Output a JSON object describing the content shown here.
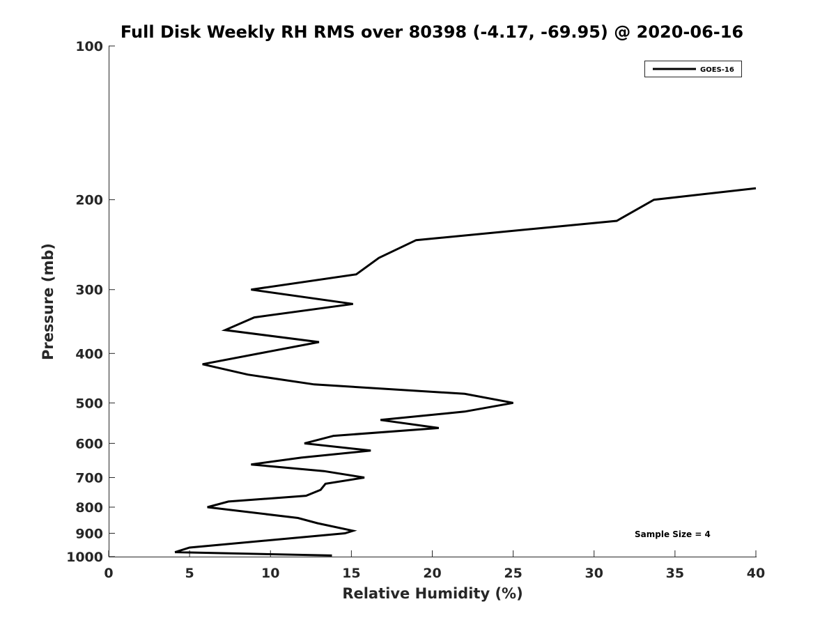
{
  "chart_data": {
    "type": "line",
    "title": "Full Disk Weekly RH RMS over 80398 (-4.17, -69.95) @ 2020-06-16",
    "xlabel": "Relative Humidity (%)",
    "ylabel": "Pressure (mb)",
    "xlim": [
      0,
      40
    ],
    "ylim": [
      100,
      1000
    ],
    "yscale": "log",
    "y_reversed": true,
    "grid": false,
    "legend_position": "top-right",
    "x_ticks": [
      0,
      5,
      10,
      15,
      20,
      25,
      30,
      35,
      40
    ],
    "y_ticks": [
      100,
      200,
      300,
      400,
      500,
      600,
      700,
      800,
      900,
      1000
    ],
    "series": [
      {
        "name": "GOES-16",
        "color": "#000000",
        "points": [
          {
            "x": 40.0,
            "y": 190
          },
          {
            "x": 33.7,
            "y": 200
          },
          {
            "x": 31.4,
            "y": 220
          },
          {
            "x": 19.0,
            "y": 240
          },
          {
            "x": 16.7,
            "y": 260
          },
          {
            "x": 15.3,
            "y": 280
          },
          {
            "x": 8.8,
            "y": 300
          },
          {
            "x": 15.1,
            "y": 320
          },
          {
            "x": 9.0,
            "y": 340
          },
          {
            "x": 7.2,
            "y": 360
          },
          {
            "x": 13.0,
            "y": 380
          },
          {
            "x": 5.8,
            "y": 420
          },
          {
            "x": 8.6,
            "y": 440
          },
          {
            "x": 12.7,
            "y": 460
          },
          {
            "x": 22.0,
            "y": 480
          },
          {
            "x": 25.0,
            "y": 500
          },
          {
            "x": 22.0,
            "y": 520
          },
          {
            "x": 16.8,
            "y": 540
          },
          {
            "x": 20.4,
            "y": 560
          },
          {
            "x": 13.9,
            "y": 580
          },
          {
            "x": 12.1,
            "y": 600
          },
          {
            "x": 16.2,
            "y": 620
          },
          {
            "x": 11.9,
            "y": 640
          },
          {
            "x": 8.8,
            "y": 660
          },
          {
            "x": 13.3,
            "y": 680
          },
          {
            "x": 15.8,
            "y": 700
          },
          {
            "x": 13.4,
            "y": 720
          },
          {
            "x": 13.1,
            "y": 740
          },
          {
            "x": 12.2,
            "y": 760
          },
          {
            "x": 7.4,
            "y": 780
          },
          {
            "x": 6.1,
            "y": 800
          },
          {
            "x": 11.7,
            "y": 840
          },
          {
            "x": 12.9,
            "y": 860
          },
          {
            "x": 15.1,
            "y": 890
          },
          {
            "x": 14.6,
            "y": 900
          },
          {
            "x": 5.0,
            "y": 960
          },
          {
            "x": 4.1,
            "y": 980
          },
          {
            "x": 13.8,
            "y": 995
          }
        ]
      }
    ],
    "annotations": [
      "Sample Size = 4"
    ]
  }
}
